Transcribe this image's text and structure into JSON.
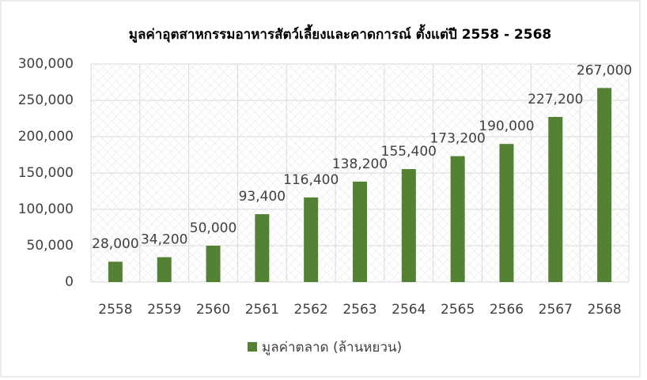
{
  "chart_data": {
    "type": "bar",
    "title": "มูลค่าอุตสาหกรรมอาหารสัตว์เลี้ยงและคาดการณ์ ตั้งแต่ปี 2558 - 2568",
    "categories": [
      "2558",
      "2559",
      "2560",
      "2561",
      "2562",
      "2563",
      "2564",
      "2565",
      "2566",
      "2567",
      "2568"
    ],
    "series": [
      {
        "name": "มูลค่าตลาด (ล้านหยวน)",
        "color": "#548235",
        "values": [
          28000,
          34200,
          50000,
          93400,
          116400,
          138200,
          155400,
          173200,
          190000,
          227200,
          267000
        ],
        "value_labels": [
          "28,000",
          "34,200",
          "50,000",
          "93,400",
          "116,400",
          "138,200",
          "155,400",
          "173,200",
          "190,000",
          "227,200",
          "267,000"
        ]
      }
    ],
    "ylim": [
      0,
      300000
    ],
    "yticks": [
      0,
      {
        "value": 50000,
        "label": "50,000"
      },
      {
        "value": 100000,
        "label": "100,000"
      },
      {
        "value": 150000,
        "label": "150,000"
      },
      {
        "value": 200000,
        "label": "200,000"
      },
      {
        "value": 250000,
        "label": "250,000"
      },
      {
        "value": 300000,
        "label": "300,000"
      }
    ],
    "grid": true,
    "legend": "bottom"
  }
}
